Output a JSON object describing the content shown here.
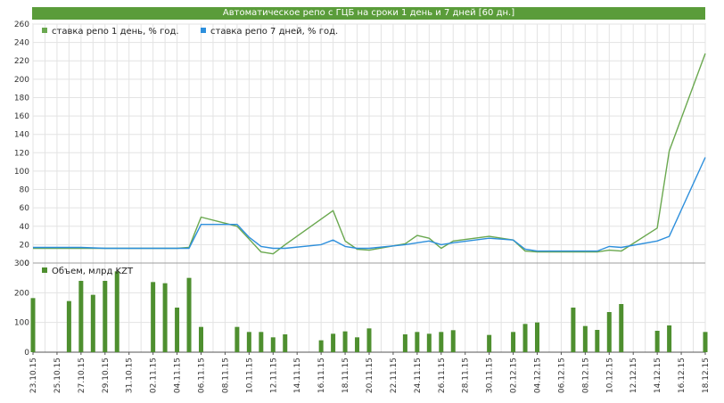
{
  "title": "Автоматическое репо с ГЦБ на сроки 1 день и 7 дней [60 дн.]",
  "colors": {
    "series1": "#6aa84f",
    "series2": "#2d8fdc",
    "volume": "#4e8f2f",
    "grid": "#e3e3e3",
    "axis": "#555555",
    "header": "#5a9c3a"
  },
  "chart_data": [
    {
      "type": "line",
      "x": [
        "23.10.15",
        "24.10.15",
        "25.10.15",
        "26.10.15",
        "27.10.15",
        "28.10.15",
        "29.10.15",
        "30.10.15",
        "31.10.15",
        "01.11.15",
        "02.11.15",
        "03.11.15",
        "04.11.15",
        "05.11.15",
        "06.11.15",
        "07.11.15",
        "08.11.15",
        "09.11.15",
        "10.11.15",
        "11.11.15",
        "12.11.15",
        "13.11.15",
        "14.11.15",
        "15.11.15",
        "16.11.15",
        "17.11.15",
        "18.11.15",
        "19.11.15",
        "20.11.15",
        "21.11.15",
        "22.11.15",
        "23.11.15",
        "24.11.15",
        "25.11.15",
        "26.11.15",
        "27.11.15",
        "28.11.15",
        "29.11.15",
        "30.11.15",
        "01.12.15",
        "02.12.15",
        "03.12.15",
        "04.12.15",
        "05.12.15",
        "06.12.15",
        "07.12.15",
        "08.12.15",
        "09.12.15",
        "10.12.15",
        "11.12.15",
        "12.12.15",
        "13.12.15",
        "14.12.15",
        "15.12.15",
        "16.12.15",
        "17.12.15",
        "18.12.15"
      ],
      "x_tick_labels": [
        "23.10.15",
        "25.10.15",
        "27.10.15",
        "29.10.15",
        "31.10.15",
        "02.11.15",
        "04.11.15",
        "06.11.15",
        "08.11.15",
        "10.11.15",
        "12.11.15",
        "14.11.15",
        "16.11.15",
        "18.11.15",
        "20.11.15",
        "22.11.15",
        "24.11.15",
        "26.11.15",
        "28.11.15",
        "30.11.15",
        "02.12.15",
        "04.12.15",
        "06.12.15",
        "08.12.15",
        "10.12.15",
        "12.12.15",
        "14.12.15",
        "16.12.15",
        "18.12.15"
      ],
      "ylim": [
        0,
        260
      ],
      "y_ticks": [
        0,
        20,
        40,
        60,
        80,
        100,
        120,
        140,
        160,
        180,
        200,
        220,
        240,
        260
      ],
      "grid": true,
      "legend": "top-left",
      "series": [
        {
          "name": "ставка репо 1 день, % год.",
          "x": [
            "23.10.15",
            "27.10.15",
            "29.10.15",
            "31.10.15",
            "02.11.15",
            "04.11.15",
            "05.11.15",
            "06.11.15",
            "09.11.15",
            "10.11.15",
            "11.11.15",
            "12.11.15",
            "13.11.15",
            "17.11.15",
            "18.11.15",
            "19.11.15",
            "20.11.15",
            "23.11.15",
            "24.11.15",
            "25.11.15",
            "26.11.15",
            "27.11.15",
            "30.11.15",
            "02.12.15",
            "03.12.15",
            "04.12.15",
            "08.12.15",
            "09.12.15",
            "10.12.15",
            "11.12.15",
            "14.12.15",
            "15.12.15",
            "18.12.15"
          ],
          "values": [
            16,
            16,
            16,
            16,
            16,
            16,
            17,
            50,
            40,
            26,
            12,
            10,
            20,
            57,
            24,
            15,
            14,
            21,
            30,
            27,
            16,
            24,
            29,
            25,
            13,
            12,
            12,
            12,
            14,
            13,
            38,
            122,
            228
          ]
        },
        {
          "name": "ставка репо 7 дней, % год.",
          "x": [
            "23.10.15",
            "27.10.15",
            "29.10.15",
            "31.10.15",
            "02.11.15",
            "04.11.15",
            "05.11.15",
            "06.11.15",
            "09.11.15",
            "10.11.15",
            "11.11.15",
            "12.11.15",
            "13.11.15",
            "16.11.15",
            "17.11.15",
            "18.11.15",
            "19.11.15",
            "20.11.15",
            "23.11.15",
            "24.11.15",
            "25.11.15",
            "26.11.15",
            "27.11.15",
            "30.11.15",
            "02.12.15",
            "03.12.15",
            "04.12.15",
            "08.12.15",
            "09.12.15",
            "10.12.15",
            "11.12.15",
            "14.12.15",
            "15.12.15",
            "18.12.15"
          ],
          "values": [
            17,
            17,
            16,
            16,
            16,
            16,
            16,
            42,
            42,
            28,
            18,
            16,
            16,
            20,
            25,
            18,
            16,
            16,
            20,
            22,
            24,
            20,
            22,
            27,
            25,
            15,
            13,
            13,
            13,
            18,
            17,
            24,
            29,
            115
          ]
        }
      ]
    },
    {
      "type": "bar",
      "ylim": [
        0,
        300
      ],
      "y_ticks": [
        0,
        100,
        200,
        300
      ],
      "grid": true,
      "legend": "top-left",
      "series": [
        {
          "name": "Объем, млрд KZT",
          "x": [
            "23.10.15",
            "26.10.15",
            "27.10.15",
            "28.10.15",
            "29.10.15",
            "30.10.15",
            "02.11.15",
            "03.11.15",
            "04.11.15",
            "05.11.15",
            "06.11.15",
            "09.11.15",
            "10.11.15",
            "11.11.15",
            "12.11.15",
            "13.11.15",
            "16.11.15",
            "17.11.15",
            "18.11.15",
            "19.11.15",
            "20.11.15",
            "23.11.15",
            "24.11.15",
            "25.11.15",
            "26.11.15",
            "27.11.15",
            "30.11.15",
            "02.12.15",
            "03.12.15",
            "04.12.15",
            "07.12.15",
            "08.12.15",
            "09.12.15",
            "10.12.15",
            "11.12.15",
            "14.12.15",
            "15.12.15",
            "18.12.15"
          ],
          "values": [
            182,
            172,
            240,
            193,
            240,
            272,
            236,
            232,
            150,
            250,
            85,
            85,
            68,
            68,
            50,
            60,
            40,
            62,
            70,
            50,
            80,
            60,
            68,
            62,
            68,
            74,
            58,
            68,
            95,
            100,
            150,
            88,
            75,
            135,
            162,
            72,
            90,
            68
          ]
        }
      ]
    }
  ]
}
